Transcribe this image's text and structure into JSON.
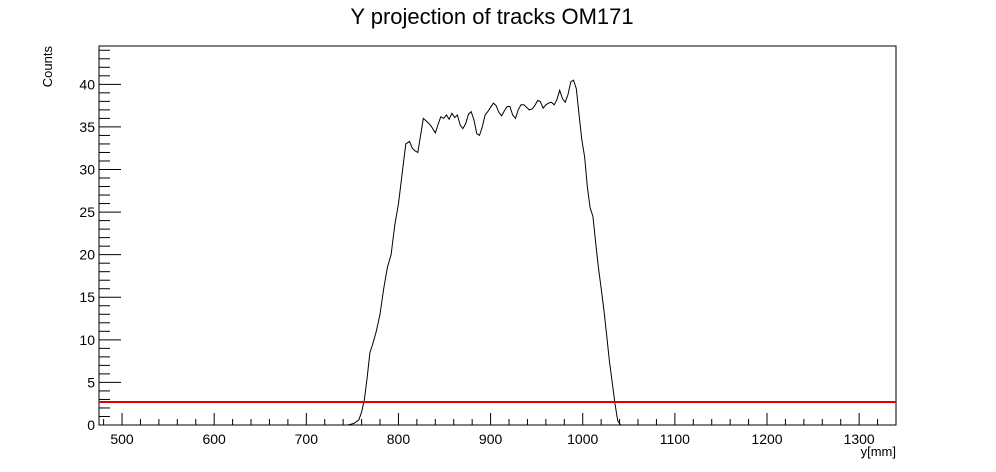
{
  "chart_data": {
    "type": "line",
    "title": "Y projection of tracks OM171",
    "xlabel": "y[mm]",
    "ylabel": "Counts",
    "xlim": [
      475,
      1340
    ],
    "ylim": [
      0,
      44.5
    ],
    "x_ticks": [
      500,
      600,
      700,
      800,
      900,
      1000,
      1100,
      1200,
      1300
    ],
    "x_tick_labels": [
      "500",
      "600",
      "700",
      "800",
      "900",
      "1000",
      "1100",
      "1200",
      "1300"
    ],
    "y_ticks": [
      0,
      5,
      10,
      15,
      20,
      25,
      30,
      35,
      40
    ],
    "y_tick_labels": [
      "0",
      "5",
      "10",
      "15",
      "20",
      "25",
      "30",
      "35",
      "40"
    ],
    "grid": false,
    "colors": {
      "series": "#000000",
      "threshold": "#e00000"
    },
    "series": [
      {
        "x": [
          745,
          752,
          757,
          760,
          763,
          766,
          769,
          772,
          776,
          780,
          784,
          788,
          792,
          796,
          800,
          804,
          808,
          812,
          815,
          818,
          821,
          824,
          827,
          830,
          833,
          836,
          840,
          843,
          846,
          849,
          852,
          855,
          858,
          861,
          864,
          867,
          870,
          873,
          876,
          879,
          882,
          885,
          888,
          891,
          894,
          897,
          900,
          903,
          906,
          909,
          912,
          915,
          918,
          921,
          924,
          927,
          930,
          933,
          936,
          939,
          942,
          945,
          948,
          951,
          954,
          957,
          960,
          963,
          966,
          969,
          972,
          975,
          978,
          981,
          984,
          987,
          990,
          993,
          996,
          999,
          1002,
          1005,
          1008,
          1011,
          1014,
          1017,
          1020,
          1023,
          1026,
          1029,
          1032,
          1035,
          1038,
          1041,
          1044,
          1047,
          1050,
          1053,
          1056,
          1059,
          1062
        ],
        "values": [
          0,
          0.2,
          0.6,
          1.5,
          3.0,
          5.5,
          8.5,
          9.5,
          11,
          13,
          16,
          18.5,
          20,
          23.5,
          26,
          29.5,
          33,
          33.3,
          32.5,
          32.2,
          32,
          34,
          36,
          35.7,
          35.4,
          35,
          34.3,
          35.3,
          36.2,
          36,
          36.4,
          35.9,
          36.6,
          36.1,
          36.4,
          35.2,
          34.8,
          35.4,
          36.5,
          36.8,
          35.8,
          34.2,
          34.0,
          35.0,
          36.4,
          36.8,
          37.3,
          37.8,
          37.5,
          36.7,
          36.3,
          36.9,
          37.4,
          37.4,
          36.4,
          36.0,
          37.0,
          37.6,
          37.6,
          37.3,
          37.0,
          37.1,
          37.5,
          38.1,
          38.0,
          37.2,
          37.6,
          37.8,
          37.9,
          37.6,
          38.2,
          39.3,
          38.3,
          37.9,
          38.8,
          40.3,
          40.5,
          39.5,
          36.5,
          33.5,
          31.5,
          28,
          25.5,
          24.5,
          21.5,
          18.5,
          16,
          13.5,
          10.5,
          7.5,
          5.0,
          2.5,
          0.5,
          0,
          0,
          0,
          0,
          0,
          0,
          0,
          0
        ]
      }
    ],
    "threshold_line": {
      "y": 2.7
    }
  }
}
